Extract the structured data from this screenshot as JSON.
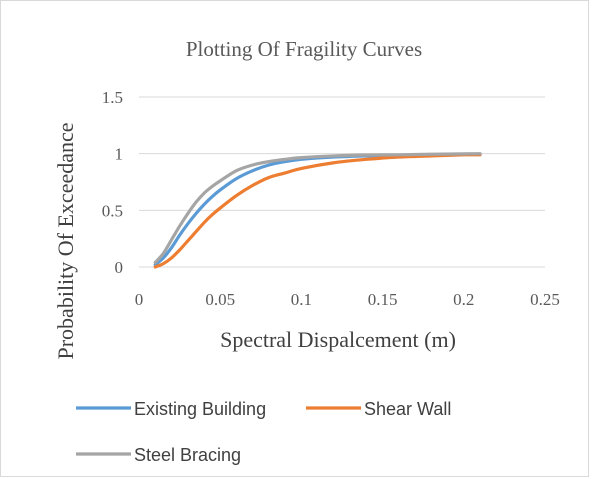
{
  "chart_data": {
    "type": "line",
    "title": "Plotting Of Fragility Curves",
    "xlabel": "Spectral Dispalcement (m)",
    "ylabel": "Probability Of Exceedance",
    "xlim": [
      0,
      0.25
    ],
    "ylim": [
      0,
      1.5
    ],
    "xticks": [
      0,
      0.05,
      0.1,
      0.15,
      0.2,
      0.25
    ],
    "yticks": [
      0,
      0.5,
      1,
      1.5
    ],
    "xtick_labels": [
      "0",
      "0.05",
      "0.1",
      "0.15",
      "0.2",
      "0.25"
    ],
    "ytick_labels": [
      "0",
      "0.5",
      "1",
      "1.5"
    ],
    "grid": "horizontal",
    "legend_position": "bottom",
    "series": [
      {
        "name": "Existing Building",
        "color": "#5b9bd5",
        "x": [
          0.01,
          0.015,
          0.02,
          0.025,
          0.03,
          0.035,
          0.04,
          0.045,
          0.05,
          0.06,
          0.07,
          0.08,
          0.09,
          0.1,
          0.12,
          0.14,
          0.16,
          0.18,
          0.2,
          0.21
        ],
        "y": [
          0.02,
          0.08,
          0.17,
          0.28,
          0.38,
          0.47,
          0.55,
          0.62,
          0.68,
          0.78,
          0.85,
          0.9,
          0.93,
          0.95,
          0.97,
          0.98,
          0.985,
          0.99,
          0.993,
          0.995
        ]
      },
      {
        "name": "Shear Wall",
        "color": "#ed7d31",
        "x": [
          0.01,
          0.015,
          0.02,
          0.025,
          0.03,
          0.035,
          0.04,
          0.045,
          0.05,
          0.06,
          0.07,
          0.08,
          0.09,
          0.1,
          0.12,
          0.14,
          0.16,
          0.18,
          0.2,
          0.21
        ],
        "y": [
          0.0,
          0.03,
          0.08,
          0.15,
          0.23,
          0.31,
          0.39,
          0.46,
          0.52,
          0.63,
          0.72,
          0.79,
          0.83,
          0.87,
          0.92,
          0.95,
          0.97,
          0.98,
          0.99,
          0.99
        ]
      },
      {
        "name": "Steel Bracing",
        "color": "#a5a5a5",
        "x": [
          0.01,
          0.015,
          0.02,
          0.025,
          0.03,
          0.035,
          0.04,
          0.045,
          0.05,
          0.06,
          0.07,
          0.08,
          0.09,
          0.1,
          0.12,
          0.14,
          0.16,
          0.18,
          0.2,
          0.21
        ],
        "y": [
          0.04,
          0.12,
          0.24,
          0.36,
          0.47,
          0.57,
          0.65,
          0.71,
          0.76,
          0.85,
          0.9,
          0.93,
          0.95,
          0.965,
          0.98,
          0.988,
          0.99,
          0.995,
          0.998,
          1.0
        ]
      }
    ]
  }
}
